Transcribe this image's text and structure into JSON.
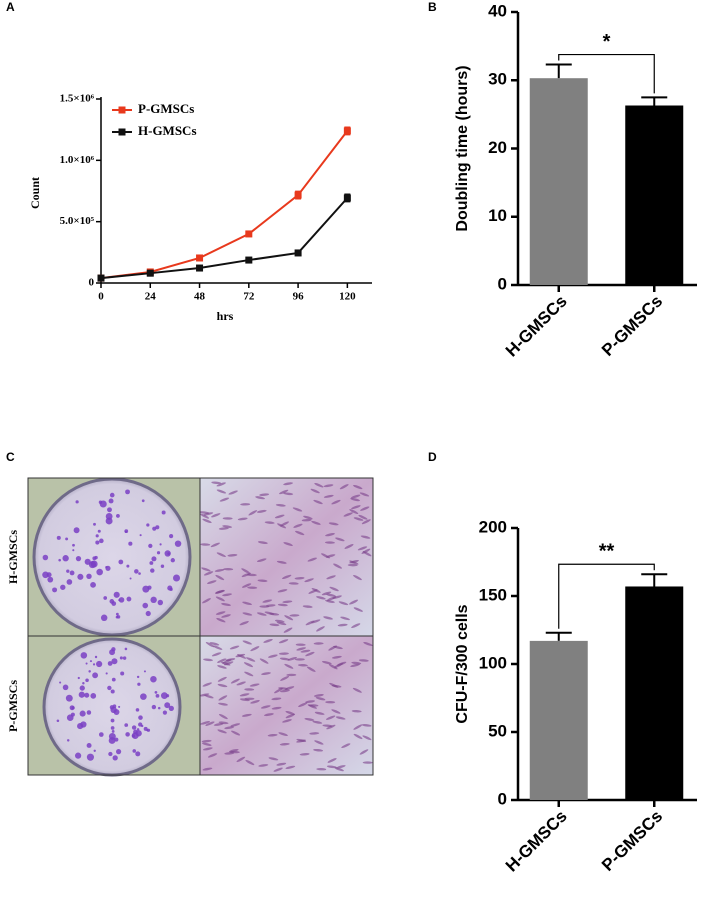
{
  "chart_data": [
    {
      "type": "line",
      "panel": "A",
      "xlabel": "hrs",
      "ylabel": "Count",
      "x": [
        0,
        24,
        48,
        72,
        96,
        120
      ],
      "series": [
        {
          "name": "P-GMSCs",
          "color": "#e8391d",
          "values": [
            40000,
            90000,
            204000,
            400000,
            717000,
            1240000
          ],
          "errors": [
            10000,
            10000,
            20000,
            10000,
            30000,
            30000
          ]
        },
        {
          "name": "H-GMSCs",
          "color": "#111111",
          "values": [
            40000,
            80000,
            122000,
            187000,
            245000,
            693000
          ],
          "errors": [
            10000,
            10000,
            10000,
            10000,
            10000,
            30000
          ]
        }
      ],
      "xlim": [
        0,
        132
      ],
      "xticks": [
        0,
        24,
        48,
        72,
        96,
        120
      ],
      "ylim": [
        0,
        1500000
      ],
      "yticks": [
        0,
        {
          "value": 500000,
          "label": "5.0×10⁵"
        },
        {
          "value": 1000000,
          "label": "1.0×10⁶"
        },
        {
          "value": 1500000,
          "label": "1.5×10⁶"
        }
      ],
      "legend": "upper-left"
    },
    {
      "type": "bar",
      "panel": "B",
      "ylabel": "Doubling time (hours)",
      "categories": [
        "H-GMSCs",
        "P-GMSCs"
      ],
      "values": [
        30.3,
        26.3
      ],
      "errors": [
        2.0,
        1.2
      ],
      "colors": [
        "#808080",
        "#000000"
      ],
      "ylim": [
        0,
        40
      ],
      "yticks": [
        0,
        10,
        20,
        30,
        40
      ],
      "significance": "*"
    },
    {
      "type": "bar",
      "panel": "D",
      "ylabel": "CFU-F/300 cells",
      "categories": [
        "H-GMSCs",
        "P-GMSCs"
      ],
      "values": [
        117,
        157
      ],
      "errors": [
        6,
        9
      ],
      "colors": [
        "#808080",
        "#000000"
      ],
      "ylim": [
        0,
        200
      ],
      "yticks": [
        0,
        50,
        100,
        150,
        200
      ],
      "significance": "**"
    }
  ],
  "image_panel": {
    "panel": "C",
    "rows": [
      "H-GMSCs",
      "P-GMSCs"
    ]
  }
}
